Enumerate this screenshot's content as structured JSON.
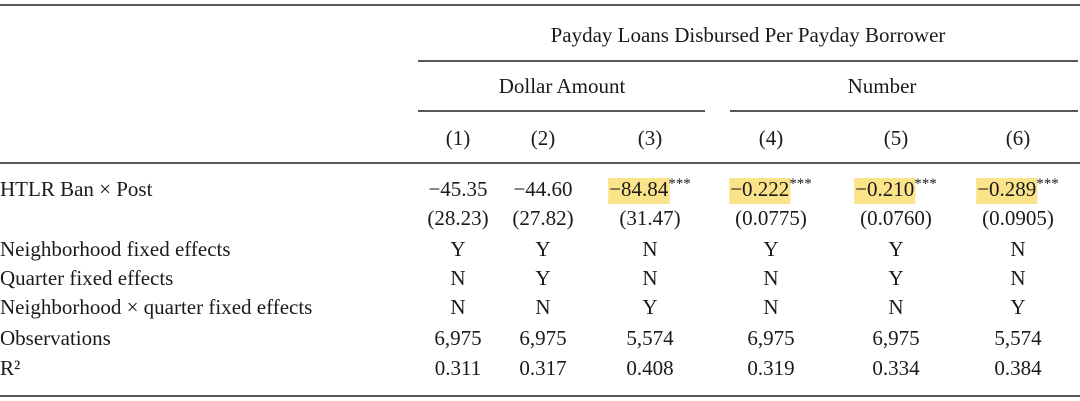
{
  "header": {
    "title": "Payday Loans Disbursed Per Payday Borrower",
    "groups": [
      "Dollar Amount",
      "Number"
    ],
    "columns": [
      "(1)",
      "(2)",
      "(3)",
      "(4)",
      "(5)",
      "(6)"
    ]
  },
  "table": {
    "rows": [
      {
        "label": "HTLR Ban × Post",
        "cells": [
          "−45.35",
          "−44.60",
          {
            "text": "−84.84",
            "stars": "***",
            "highlight": true
          },
          {
            "text": "−0.222",
            "stars": "***",
            "highlight": true
          },
          {
            "text": "−0.210",
            "stars": "***",
            "highlight": true
          },
          {
            "text": "−0.289",
            "stars": "***",
            "highlight": true
          }
        ]
      },
      {
        "cells": [
          "(28.23)",
          "(27.82)",
          "(31.47)",
          "(0.0775)",
          "(0.0760)",
          "(0.0905)"
        ]
      },
      {
        "label": "Neighborhood fixed effects",
        "cells": [
          "Y",
          "Y",
          "N",
          "Y",
          "Y",
          "N"
        ]
      },
      {
        "label": "Quarter fixed effects",
        "cells": [
          "N",
          "Y",
          "N",
          "N",
          "Y",
          "N"
        ]
      },
      {
        "label": "Neighborhood × quarter fixed effects",
        "cells": [
          "N",
          "N",
          "Y",
          "N",
          "N",
          "Y"
        ]
      },
      {
        "label": "Observations",
        "cells": [
          "6,975",
          "6,975",
          "5,574",
          "6,975",
          "6,975",
          "5,574"
        ]
      },
      {
        "label": "R²",
        "cells": [
          "0.311",
          "0.317",
          "0.408",
          "0.319",
          "0.334",
          "0.384"
        ]
      }
    ]
  }
}
